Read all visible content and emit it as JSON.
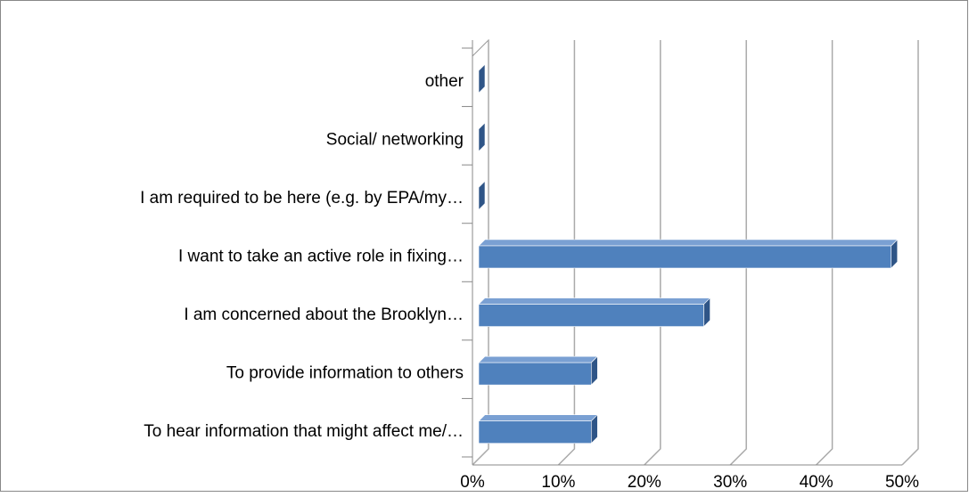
{
  "chart_data": {
    "type": "bar3d_horizontal",
    "categories": [
      "other",
      "Social/ networking",
      "I am required to be here (e.g. by EPA/my…",
      "I want to take an active role in fixing…",
      "I am concerned about the Brooklyn…",
      "To provide information to others",
      "To hear information that might affect me/…"
    ],
    "values": [
      0,
      0,
      0,
      48,
      26.2,
      13.1,
      13.1
    ],
    "color": "#4f81bd",
    "xlim": [
      0,
      50
    ],
    "xticks": [
      {
        "value": 0,
        "label": "0%"
      },
      {
        "value": 10,
        "label": "10%"
      },
      {
        "value": 20,
        "label": "20%"
      },
      {
        "value": 30,
        "label": "30%"
      },
      {
        "value": 40,
        "label": "40%"
      },
      {
        "value": 50,
        "label": "50%"
      }
    ],
    "grid": true
  }
}
